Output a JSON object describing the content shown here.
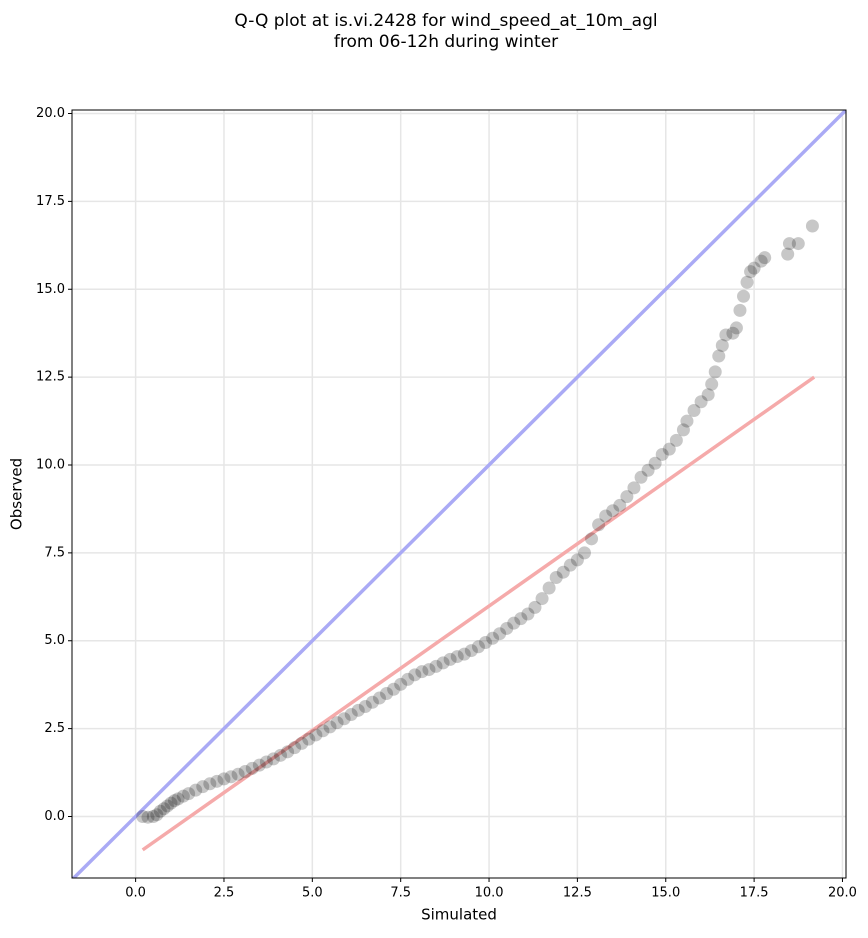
{
  "chart_data": {
    "type": "scatter",
    "title": [
      "Q-Q plot at is.vi.2428 for wind_speed_at_10m_agl",
      "from 06-12h during winter"
    ],
    "x_label": "Simulated",
    "y_label": "Observed",
    "xlim": [
      -1.8,
      20.1
    ],
    "ylim": [
      -1.75,
      20.1
    ],
    "xticks": [
      {
        "value": 0,
        "label": "0.0"
      },
      2.5,
      {
        "value": 5,
        "label": "5.0"
      },
      7.5,
      {
        "value": 10,
        "label": "10.0"
      },
      12.5,
      {
        "value": 15,
        "label": "15.0"
      },
      17.5,
      {
        "value": 20,
        "label": "20.0"
      }
    ],
    "yticks": [
      {
        "value": 0,
        "label": "0.0"
      },
      2.5,
      {
        "value": 5,
        "label": "5.0"
      },
      7.5,
      {
        "value": 10,
        "label": "10.0"
      },
      12.5,
      {
        "value": 15,
        "label": "15.0"
      },
      17.5,
      {
        "value": 20,
        "label": "20.0"
      }
    ],
    "grid": true,
    "series": [
      {
        "type": "scatter",
        "color": "#000000",
        "x": [
          0.2,
          0.35,
          0.5,
          0.6,
          0.7,
          0.8,
          0.9,
          1.0,
          1.1,
          1.2,
          1.35,
          1.5,
          1.7,
          1.9,
          2.1,
          2.3,
          2.5,
          2.7,
          2.9,
          3.1,
          3.3,
          3.5,
          3.7,
          3.9,
          4.1,
          4.3,
          4.5,
          4.7,
          4.9,
          5.1,
          5.3,
          5.5,
          5.7,
          5.9,
          6.1,
          6.3,
          6.5,
          6.7,
          6.9,
          7.1,
          7.3,
          7.5,
          7.7,
          7.9,
          8.1,
          8.3,
          8.5,
          8.7,
          8.9,
          9.1,
          9.3,
          9.5,
          9.7,
          9.9,
          10.1,
          10.3,
          10.5,
          10.7,
          10.9,
          11.1,
          11.3,
          11.5,
          11.7,
          11.9,
          12.1,
          12.3,
          12.5,
          12.7,
          12.9,
          13.1,
          13.3,
          13.5,
          13.7,
          13.9,
          14.1,
          14.3,
          14.5,
          14.7,
          14.9,
          15.1,
          15.3,
          15.5,
          15.6,
          15.8,
          16.0,
          16.2,
          16.3,
          16.4,
          16.5,
          16.6,
          16.7,
          16.9,
          17.0,
          17.1,
          17.2,
          17.3,
          17.4,
          17.5,
          17.7,
          17.8,
          18.45,
          18.5,
          18.75,
          19.15
        ],
        "values": [
          0,
          -0.02,
          0,
          0.05,
          0.15,
          0.22,
          0.3,
          0.38,
          0.45,
          0.5,
          0.58,
          0.65,
          0.75,
          0.85,
          0.93,
          1.0,
          1.07,
          1.13,
          1.2,
          1.28,
          1.37,
          1.46,
          1.55,
          1.64,
          1.74,
          1.84,
          1.96,
          2.08,
          2.2,
          2.32,
          2.44,
          2.55,
          2.67,
          2.78,
          2.9,
          3.02,
          3.13,
          3.25,
          3.37,
          3.5,
          3.62,
          3.76,
          3.9,
          4.03,
          4.12,
          4.18,
          4.27,
          4.37,
          4.47,
          4.55,
          4.62,
          4.72,
          4.83,
          4.95,
          5.07,
          5.2,
          5.35,
          5.5,
          5.63,
          5.76,
          5.95,
          6.2,
          6.5,
          6.8,
          6.95,
          7.15,
          7.3,
          7.5,
          7.9,
          8.3,
          8.55,
          8.7,
          8.85,
          9.1,
          9.35,
          9.65,
          9.85,
          10.05,
          10.3,
          10.45,
          10.7,
          11.0,
          11.25,
          11.55,
          11.8,
          12.0,
          12.3,
          12.65,
          13.1,
          13.4,
          13.7,
          13.75,
          13.9,
          14.4,
          14.8,
          15.2,
          15.5,
          15.6,
          15.8,
          15.9,
          16.0,
          16.3,
          16.3,
          16.8
        ]
      },
      {
        "type": "line",
        "color": "#aaaaf5",
        "x": [
          -1.8,
          20.1
        ],
        "values": [
          -1.8,
          20.1
        ]
      },
      {
        "type": "line",
        "color": "#f5aaaa",
        "x": [
          0.2,
          19.2
        ],
        "values": [
          -0.95,
          12.5
        ]
      }
    ]
  }
}
